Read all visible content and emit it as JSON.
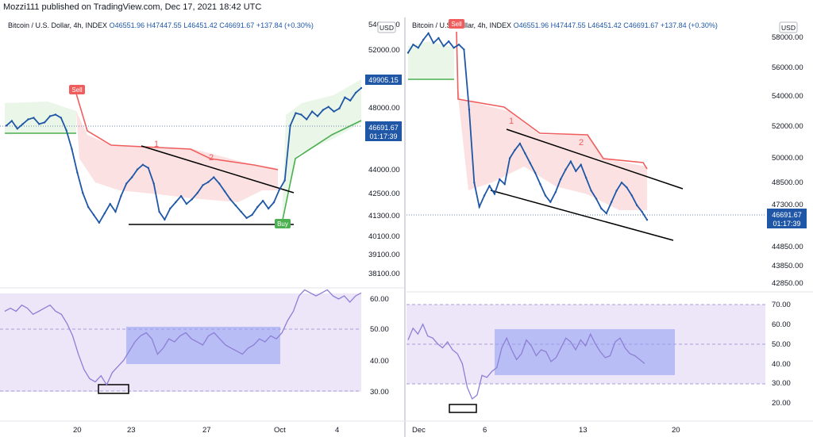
{
  "header": {
    "publisher": "Mozzi111 published on TradingView.com, Dec 17, 2021 18:42 UTC"
  },
  "colors": {
    "up": "#1f57a6",
    "supertrend_up": "#4caf50",
    "supertrend_down": "#f05d5d",
    "rsi_line": "#8c7fd6",
    "rsi_band": "#ece6f8",
    "box": "#8f9bf2",
    "price_tag": "#1f57a6"
  },
  "chart_data": [
    {
      "type": "line",
      "pane": "left-price",
      "symbol": "Bitcoin / U.S. Dollar, 4h, INDEX",
      "ohlc": {
        "open": "O46551.96",
        "high": "H47447.55",
        "low": "L46451.42",
        "close": "C46691.67",
        "change": "+137.84 (+0.30%)"
      },
      "currency": "USD",
      "y_ticks": [
        "54000.00",
        "52000.00",
        "48000.00",
        "44000.00",
        "42500.00",
        "41300.00",
        "40100.00",
        "39100.00",
        "38100.00"
      ],
      "x_ticks": [
        "20",
        "23",
        "27",
        "Oct",
        "4"
      ],
      "price_label_1": "49905.15",
      "price_label_2": "46691.67",
      "countdown": "01:17:39",
      "signals": {
        "sell": "Sell",
        "buy": "Buy"
      },
      "annotations": [
        "1",
        "2"
      ],
      "close": [
        47500,
        47800,
        47300,
        47600,
        47900,
        48000,
        47600,
        47700,
        48100,
        48200,
        48000,
        47200,
        46000,
        44500,
        43200,
        42300,
        41800,
        41300,
        41900,
        42500,
        42000,
        43000,
        43800,
        44200,
        44700,
        45000,
        44800,
        43800,
        42000,
        41500,
        42200,
        42600,
        43000,
        42500,
        42800,
        43200,
        43700,
        43900,
        44200,
        43800,
        43300,
        42800,
        42400,
        42000,
        41600,
        41800,
        42300,
        42700,
        42200,
        42600,
        43400,
        44000,
        47500,
        48300,
        48200,
        47900,
        48400,
        48100,
        48500,
        48700,
        48400,
        48600,
        49300,
        49100,
        49600,
        49900
      ]
    },
    {
      "type": "line",
      "pane": "right-price",
      "symbol": "Bitcoin / U.S. Dollar, 4h, INDEX",
      "ohlc": {
        "open": "O46551.96",
        "high": "H47447.55",
        "low": "L46451.42",
        "close": "C46691.67",
        "change": "+137.84 (+0.30%)"
      },
      "currency": "USD",
      "y_ticks": [
        "58000.00",
        "56000.00",
        "54000.00",
        "52000.00",
        "50000.00",
        "48500.00",
        "47300.00",
        "44850.00",
        "43850.00",
        "42850.00"
      ],
      "x_ticks": [
        "Dec",
        "6",
        "13",
        "20"
      ],
      "price_label": "46691.67",
      "countdown": "01:17:39",
      "signals": {
        "sell": "Sell"
      },
      "annotations": [
        "1",
        "2"
      ],
      "close": [
        57000,
        57500,
        57300,
        57800,
        58200,
        57600,
        57900,
        57400,
        57700,
        57300,
        57500,
        57200,
        53500,
        49000,
        47500,
        48200,
        48800,
        48300,
        49200,
        48900,
        50500,
        51000,
        51400,
        50800,
        50200,
        49600,
        48900,
        48200,
        47800,
        48400,
        49200,
        49800,
        50300,
        49700,
        50100,
        49300,
        48500,
        48000,
        47400,
        47100,
        47800,
        48500,
        49000,
        48700,
        48200,
        47600,
        47200,
        46700
      ]
    },
    {
      "type": "line",
      "pane": "left-rsi",
      "y_ticks": [
        "60.00",
        "50.00",
        "40.00",
        "30.00"
      ],
      "values": [
        56,
        57,
        56,
        58,
        57,
        55,
        56,
        57,
        58,
        56,
        55,
        52,
        48,
        42,
        37,
        34,
        33,
        35,
        32,
        36,
        38,
        40,
        43,
        46,
        48,
        49,
        47,
        42,
        44,
        47,
        46,
        48,
        49,
        47,
        46,
        45,
        48,
        49,
        47,
        45,
        44,
        43,
        42,
        44,
        45,
        47,
        46,
        48,
        47,
        49,
        53,
        56,
        61,
        63,
        62,
        61,
        62,
        63,
        61,
        60,
        61,
        59,
        61,
        62
      ]
    },
    {
      "type": "line",
      "pane": "right-rsi",
      "y_ticks": [
        "70.00",
        "60.00",
        "50.00",
        "40.00",
        "30.00",
        "20.00"
      ],
      "values": [
        52,
        58,
        55,
        60,
        54,
        53,
        50,
        48,
        51,
        47,
        45,
        40,
        28,
        22,
        24,
        34,
        33,
        36,
        38,
        48,
        53,
        47,
        42,
        45,
        52,
        49,
        44,
        47,
        46,
        41,
        43,
        48,
        53,
        51,
        47,
        52,
        49,
        55,
        50,
        46,
        43,
        44,
        51,
        53,
        48,
        45,
        44,
        42,
        40
      ]
    }
  ]
}
